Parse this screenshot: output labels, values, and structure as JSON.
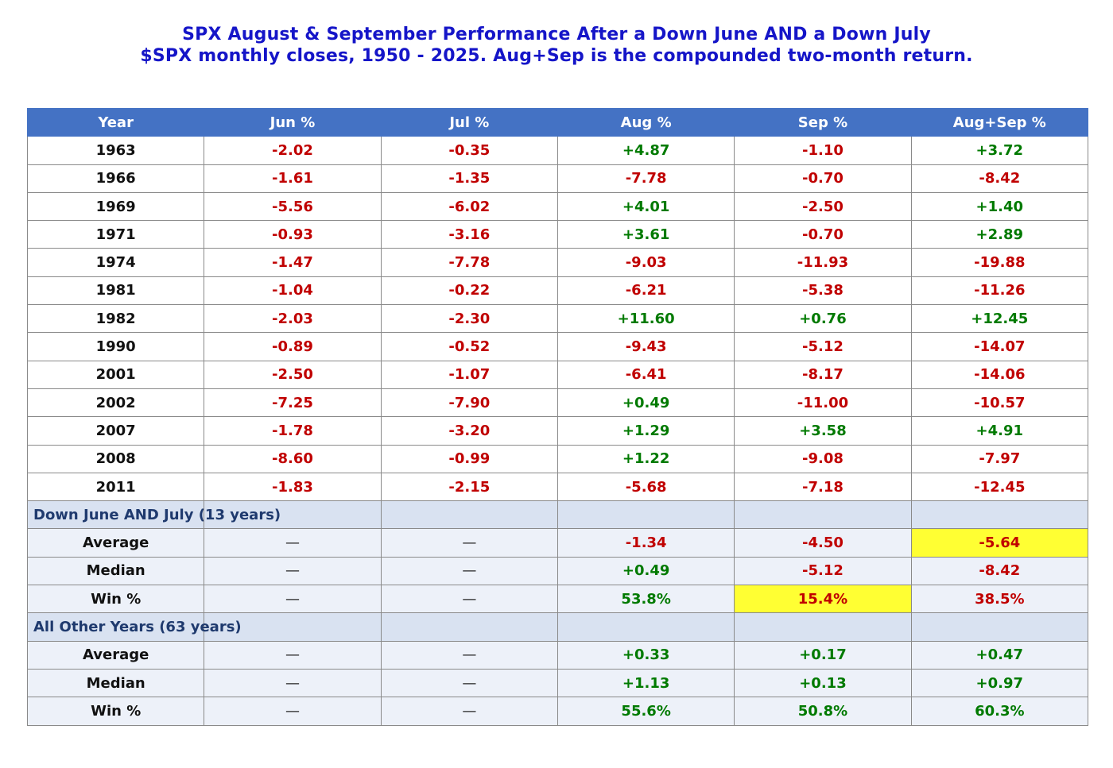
{
  "title_line1": "SPX August & September Performance After a Down June AND a Down July",
  "title_line2": "$SPX monthly closes, 1950 - 2025.  Aug+Sep is the compounded two-month return.",
  "chart_data": {
    "type": "table",
    "columns": [
      "Year",
      "Jun %",
      "Jul %",
      "Aug %",
      "Sep %",
      "Aug+Sep %"
    ],
    "rows": [
      [
        "1963",
        "-2.02",
        "-0.35",
        "+4.87",
        "-1.10",
        "+3.72"
      ],
      [
        "1966",
        "-1.61",
        "-1.35",
        "-7.78",
        "-0.70",
        "-8.42"
      ],
      [
        "1969",
        "-5.56",
        "-6.02",
        "+4.01",
        "-2.50",
        "+1.40"
      ],
      [
        "1971",
        "-0.93",
        "-3.16",
        "+3.61",
        "-0.70",
        "+2.89"
      ],
      [
        "1974",
        "-1.47",
        "-7.78",
        "-9.03",
        "-11.93",
        "-19.88"
      ],
      [
        "1981",
        "-1.04",
        "-0.22",
        "-6.21",
        "-5.38",
        "-11.26"
      ],
      [
        "1982",
        "-2.03",
        "-2.30",
        "+11.60",
        "+0.76",
        "+12.45"
      ],
      [
        "1990",
        "-0.89",
        "-0.52",
        "-9.43",
        "-5.12",
        "-14.07"
      ],
      [
        "2001",
        "-2.50",
        "-1.07",
        "-6.41",
        "-8.17",
        "-14.06"
      ],
      [
        "2002",
        "-7.25",
        "-7.90",
        "+0.49",
        "-11.00",
        "-10.57"
      ],
      [
        "2007",
        "-1.78",
        "-3.20",
        "+1.29",
        "+3.58",
        "+4.91"
      ],
      [
        "2008",
        "-8.60",
        "-0.99",
        "+1.22",
        "-9.08",
        "-7.97"
      ],
      [
        "2011",
        "-1.83",
        "-2.15",
        "-5.68",
        "-7.18",
        "-12.45"
      ]
    ],
    "sections": [
      {
        "label": "Down June AND July  (13 years)",
        "stats": [
          {
            "name": "Average",
            "jun": "—",
            "jul": "—",
            "aug": "-1.34",
            "sep": "-4.50",
            "augsep": "-5.64",
            "highlight": "augsep"
          },
          {
            "name": "Median",
            "jun": "—",
            "jul": "—",
            "aug": "+0.49",
            "sep": "-5.12",
            "augsep": "-8.42",
            "highlight": ""
          },
          {
            "name": "Win %",
            "jun": "—",
            "jul": "—",
            "aug": "53.8%",
            "sep": "15.4%",
            "augsep": "38.5%",
            "highlight": "sep"
          }
        ]
      },
      {
        "label": "All Other Years  (63 years)",
        "stats": [
          {
            "name": "Average",
            "jun": "—",
            "jul": "—",
            "aug": "+0.33",
            "sep": "+0.17",
            "augsep": "+0.47",
            "highlight": ""
          },
          {
            "name": "Median",
            "jun": "—",
            "jul": "—",
            "aug": "+1.13",
            "sep": "+0.13",
            "augsep": "+0.97",
            "highlight": ""
          },
          {
            "name": "Win %",
            "jun": "—",
            "jul": "—",
            "aug": "55.6%",
            "sep": "50.8%",
            "augsep": "60.3%",
            "highlight": ""
          }
        ]
      }
    ]
  },
  "colors": {
    "header_bg": "#4472c4",
    "negative": "#c00000",
    "positive": "#007a00",
    "highlight": "#ffff33",
    "title": "#1515c8"
  }
}
